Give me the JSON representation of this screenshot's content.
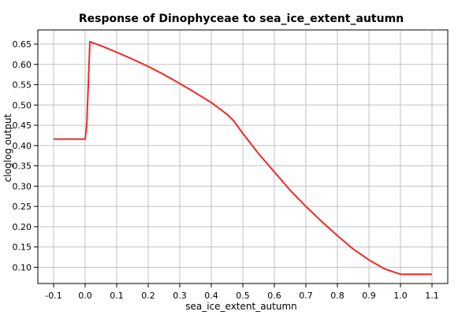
{
  "chart_data": {
    "type": "line",
    "title": "Response of Dinophyceae to sea_ice_extent_autumn",
    "xlabel": "sea_ice_extent_autumn",
    "ylabel": "cloglog output",
    "xlim": [
      -0.15,
      1.15
    ],
    "ylim": [
      0.06,
      0.685
    ],
    "xticks": [
      "-0.1",
      "0.0",
      "0.1",
      "0.2",
      "0.3",
      "0.4",
      "0.5",
      "0.6",
      "0.7",
      "0.8",
      "0.9",
      "1.0",
      "1.1"
    ],
    "yticks": [
      "0.10",
      "0.15",
      "0.20",
      "0.25",
      "0.30",
      "0.35",
      "0.40",
      "0.45",
      "0.50",
      "0.55",
      "0.60",
      "0.65"
    ],
    "grid": true,
    "series": [
      {
        "color": "#ee2a2a",
        "x": [
          -0.1,
          0.0,
          0.005,
          0.01,
          0.015,
          0.05,
          0.1,
          0.15,
          0.2,
          0.25,
          0.3,
          0.35,
          0.4,
          0.45,
          0.47,
          0.5,
          0.55,
          0.6,
          0.65,
          0.7,
          0.75,
          0.8,
          0.85,
          0.9,
          0.95,
          0.98,
          1.0,
          1.1
        ],
        "y": [
          0.416,
          0.416,
          0.45,
          0.55,
          0.656,
          0.646,
          0.63,
          0.613,
          0.595,
          0.575,
          0.553,
          0.53,
          0.506,
          0.477,
          0.462,
          0.43,
          0.38,
          0.335,
          0.29,
          0.25,
          0.213,
          0.178,
          0.145,
          0.118,
          0.096,
          0.088,
          0.083,
          0.083
        ]
      }
    ]
  }
}
